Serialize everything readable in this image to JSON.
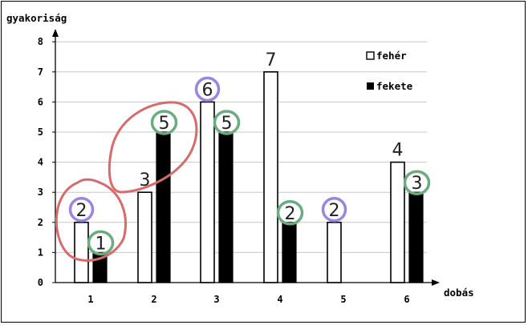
{
  "chart_data": {
    "type": "bar",
    "ylabel": "gyakoriság",
    "xlabel": "dobás",
    "categories": [
      "1",
      "2",
      "3",
      "4",
      "5",
      "6"
    ],
    "ylim": [
      0,
      8
    ],
    "yticks": [
      "0",
      "1",
      "2",
      "3",
      "4",
      "5",
      "6",
      "7",
      "8"
    ],
    "grid": true,
    "legend_position": "top-right",
    "series": [
      {
        "name": "fehér",
        "values": [
          2,
          3,
          6,
          7,
          2,
          4
        ],
        "fill": "#ffffff"
      },
      {
        "name": "fekete",
        "values": [
          1,
          5,
          5,
          2,
          0,
          3
        ],
        "fill": "#000000"
      }
    ],
    "handwritten_labels": {
      "white": [
        "2",
        "3",
        "6",
        "7",
        "2",
        "4"
      ],
      "black": [
        "1",
        "5",
        "5",
        "2",
        "",
        "3"
      ]
    },
    "circled": {
      "white": [
        true,
        false,
        true,
        false,
        true,
        false
      ],
      "black": [
        true,
        true,
        true,
        true,
        false,
        true
      ]
    }
  },
  "colors": {
    "axis": "#000000",
    "grid": "#c8c8c8",
    "green_circle": "#6aac7e",
    "purple_circle": "#9a86e0",
    "red_loop": "#d96a6a",
    "handwriting": "#222222"
  }
}
